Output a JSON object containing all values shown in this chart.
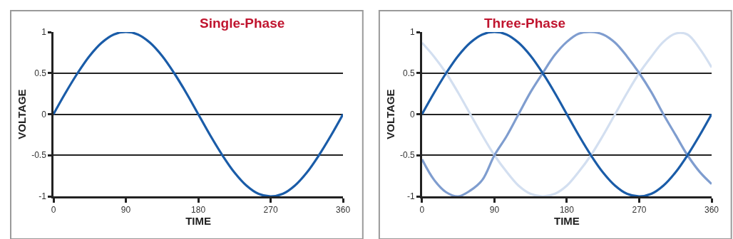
{
  "chart_data": [
    {
      "type": "line",
      "title": "Single-Phase",
      "xlabel": "TIME",
      "ylabel": "VOLTAGE",
      "x": [
        0,
        15,
        30,
        45,
        60,
        75,
        90,
        105,
        120,
        135,
        150,
        165,
        180,
        195,
        210,
        225,
        240,
        255,
        270,
        285,
        300,
        315,
        330,
        345,
        360
      ],
      "xlim": [
        0,
        360
      ],
      "ylim": [
        -1,
        1
      ],
      "xticks": [
        0,
        90,
        180,
        270,
        360
      ],
      "yticks": [
        -1,
        -0.5,
        0,
        0.5,
        1
      ],
      "grid": "y",
      "series": [
        {
          "color": "#1a5ca8",
          "values": [
            0,
            0.26,
            0.5,
            0.71,
            0.87,
            0.97,
            1,
            0.97,
            0.87,
            0.71,
            0.5,
            0.26,
            0,
            -0.26,
            -0.5,
            -0.71,
            -0.87,
            -0.97,
            -1,
            -0.97,
            -0.87,
            -0.71,
            -0.5,
            -0.26,
            0
          ]
        }
      ]
    },
    {
      "type": "line",
      "title": "Three-Phase",
      "xlabel": "TIME",
      "ylabel": "VOLTAGE",
      "x": [
        0,
        15,
        30,
        45,
        60,
        75,
        90,
        105,
        120,
        135,
        150,
        165,
        180,
        195,
        210,
        225,
        240,
        255,
        270,
        285,
        300,
        315,
        330,
        345,
        360
      ],
      "xlim": [
        0,
        360
      ],
      "ylim": [
        -1,
        1
      ],
      "xticks": [
        0,
        90,
        180,
        270,
        360
      ],
      "yticks": [
        -1,
        -0.5,
        0,
        0.5,
        1
      ],
      "grid": "y",
      "series": [
        {
          "color": "#d3dff0",
          "values": [
            0.87,
            0.7,
            0.5,
            0.26,
            0,
            -0.26,
            -0.5,
            -0.7,
            -0.87,
            -0.97,
            -1,
            -0.97,
            -0.87,
            -0.7,
            -0.5,
            -0.26,
            0,
            0.26,
            0.5,
            0.7,
            0.88,
            0.98,
            0.97,
            0.8,
            0.57
          ]
        },
        {
          "color": "#7f9dcf",
          "values": [
            -0.55,
            -0.8,
            -0.95,
            -1,
            -0.93,
            -0.8,
            -0.5,
            -0.27,
            0,
            0.27,
            0.5,
            0.72,
            0.88,
            0.98,
            1,
            0.97,
            0.87,
            0.7,
            0.5,
            0.27,
            0,
            -0.25,
            -0.5,
            -0.7,
            -0.85
          ]
        },
        {
          "color": "#1a5ca8",
          "values": [
            0,
            0.26,
            0.5,
            0.71,
            0.87,
            0.97,
            1,
            0.97,
            0.87,
            0.71,
            0.5,
            0.26,
            0,
            -0.26,
            -0.5,
            -0.71,
            -0.87,
            -0.97,
            -1,
            -0.97,
            -0.87,
            -0.71,
            -0.5,
            -0.26,
            0
          ]
        }
      ]
    }
  ]
}
